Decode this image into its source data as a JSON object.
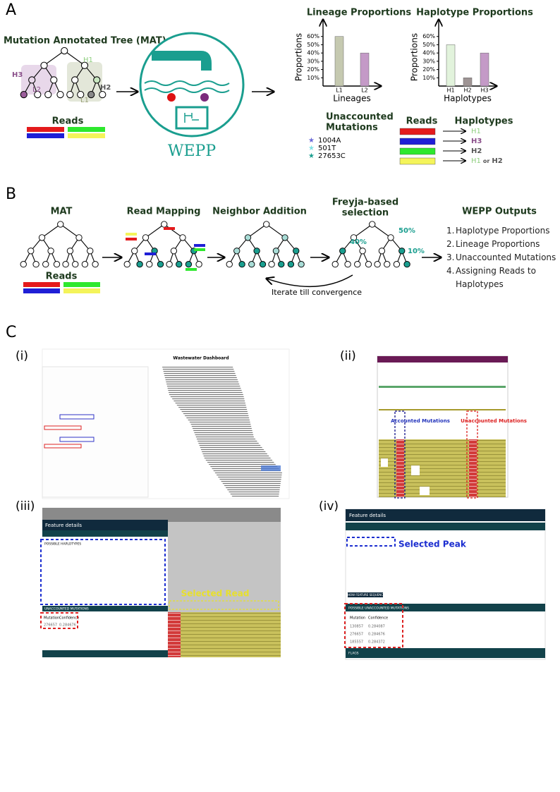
{
  "panel_a": {
    "label": "A",
    "mat_title": "Mutation Annotated Tree (MAT)",
    "tree_labels": {
      "h1": "H1",
      "h3": "H3",
      "l2": "L2",
      "h2": "H2",
      "l1": "L1"
    },
    "reads_label": "Reads",
    "logo_text": "WEPP",
    "lineage_chart": {
      "type": "bar",
      "title": "Lineage Proportions",
      "y_label": "Proportions",
      "x_label": "Lineages",
      "categories": [
        "L1",
        "L2"
      ],
      "values": [
        60,
        40
      ],
      "colors": [
        "#c5c9b0",
        "#c49ac7"
      ],
      "ylim": [
        0,
        70
      ],
      "yticks": [
        {
          "value": 10,
          "label": "10%"
        },
        {
          "value": 20,
          "label": "20%"
        },
        {
          "value": 30,
          "label": "30%"
        },
        {
          "value": 40,
          "label": "40%"
        },
        {
          "value": 50,
          "label": "50%"
        },
        {
          "value": 60,
          "label": "60%"
        }
      ]
    },
    "haplotype_chart": {
      "type": "bar",
      "title": "Haplotype Proportions",
      "y_label": "Proportions",
      "x_label": "Haplotypes",
      "categories": [
        "H1",
        "H2",
        "H3"
      ],
      "values": [
        50,
        10,
        40
      ],
      "colors": [
        "#e2f3dc",
        "#9e9494",
        "#c49ac7"
      ],
      "ylim": [
        0,
        70
      ],
      "yticks": [
        {
          "value": 10,
          "label": "10%"
        },
        {
          "value": 20,
          "label": "20%"
        },
        {
          "value": 30,
          "label": "30%"
        },
        {
          "value": 40,
          "label": "40%"
        },
        {
          "value": 50,
          "label": "50%"
        },
        {
          "value": 60,
          "label": "60%"
        }
      ]
    },
    "unaccounted": {
      "title_lines": [
        "Unaccounted",
        "Mutations"
      ],
      "items": [
        "1004A",
        "501T",
        "27653C"
      ]
    },
    "assignment": {
      "reads_header": "Reads",
      "haplotypes_header": "Haplotypes",
      "rows": [
        [
          "H1"
        ],
        [
          "H3"
        ],
        [
          "H2"
        ],
        [
          "H1",
          "or",
          "H2"
        ]
      ]
    }
  },
  "panel_b": {
    "label": "B",
    "steps": [
      "MAT",
      "Read Mapping",
      "Neighbor Addition"
    ],
    "freyja_title_lines": [
      "Freyja-based",
      "selection"
    ],
    "reads_label": "Reads",
    "freyja_proportions": [
      "40%",
      "50%",
      "10%"
    ],
    "iterate": "Iterate till convergence",
    "outputs_title": "WEPP Outputs",
    "outputs": [
      {
        "number": "1.",
        "text": "Haplotype Proportions"
      },
      {
        "number": "2.",
        "text": "Lineage Proportions"
      },
      {
        "number": "3.",
        "text": "Unaccounted Mutations"
      },
      {
        "number": "4.",
        "text": "Assigning Reads to Haplotypes"
      }
    ]
  },
  "panel_c": {
    "label": "C",
    "sub_labels": [
      "(i)",
      "(ii)",
      "(iii)",
      "(iv)"
    ],
    "dashboard_title": "Wastewater Dashboard",
    "accounted": "Accounted Mutations",
    "unaccounted": "Unaccounted Mutations",
    "feature_details": "Feature details",
    "possible_haplotypes": "POSSIBLE HAPLOTYPES",
    "selected_read": "Selected Read",
    "unaccounted_header": "UNACCOUNTED MUTATIONS",
    "selected_peak": "Selected Peak",
    "show_sequence": "SHOW FEATURE SEQUENCE",
    "possible_unaccounted": "POSSIBLE UNACCOUNTED MUTATIONS",
    "table_header": [
      "Mutation",
      "Confidence"
    ],
    "table_rows": [
      [
        "130857",
        "0.284087"
      ],
      [
        "276657",
        "0.284676"
      ],
      [
        "185557",
        "0.284372"
      ]
    ],
    "flags": "FLAGS"
  }
}
